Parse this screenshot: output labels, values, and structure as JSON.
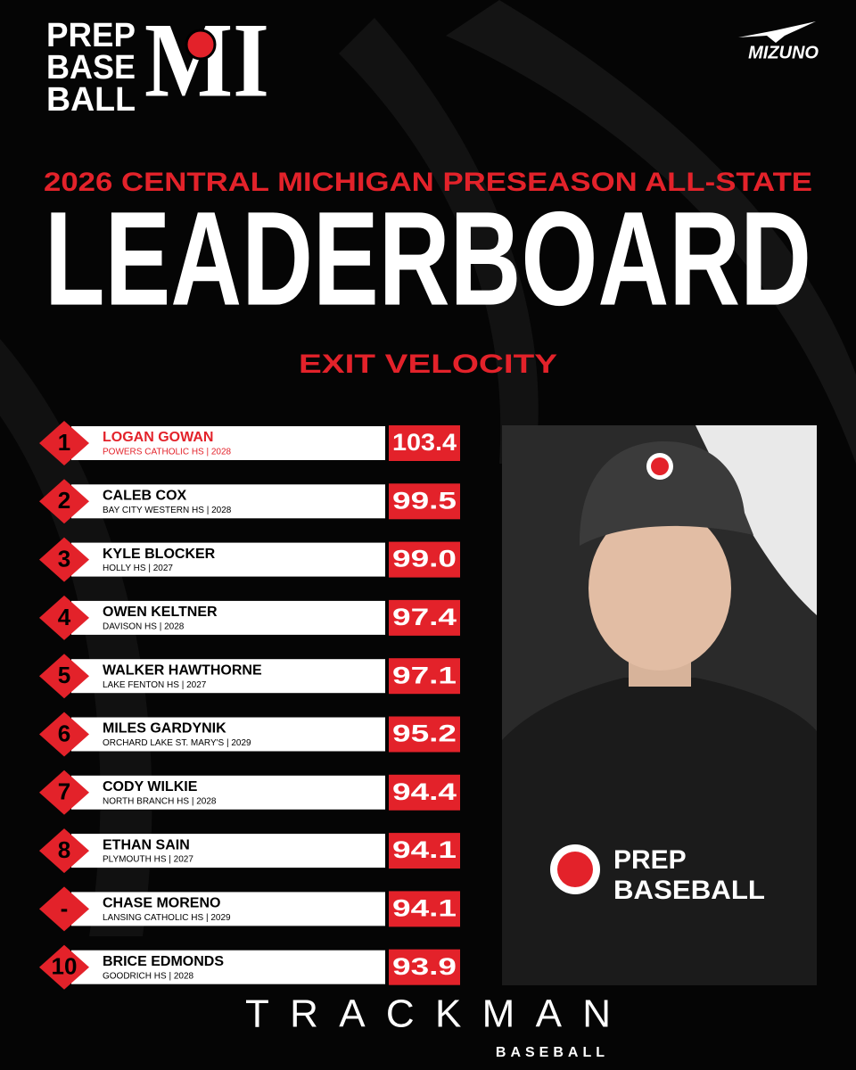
{
  "logo": {
    "lines": [
      "PREP",
      "BASE",
      "BALL"
    ],
    "state": "MI"
  },
  "sponsor": "MIZUNO",
  "header": {
    "subtitle": "2026 CENTRAL MICHIGAN PRESEASON ALL-STATE",
    "title": "LEADERBOARD",
    "category": "EXIT VELOCITY"
  },
  "rows": [
    {
      "rank": "1",
      "name": "LOGAN GOWAN",
      "school": "POWERS CATHOLIC HS | 2028",
      "value": "103.4"
    },
    {
      "rank": "2",
      "name": "CALEB COX",
      "school": "BAY CITY WESTERN HS | 2028",
      "value": "99.5"
    },
    {
      "rank": "3",
      "name": "KYLE BLOCKER",
      "school": "HOLLY HS | 2027",
      "value": "99.0"
    },
    {
      "rank": "4",
      "name": "OWEN KELTNER",
      "school": "DAVISON HS | 2028",
      "value": "97.4"
    },
    {
      "rank": "5",
      "name": "WALKER HAWTHORNE",
      "school": "LAKE FENTON HS | 2027",
      "value": "97.1"
    },
    {
      "rank": "6",
      "name": "MILES GARDYNIK",
      "school": "ORCHARD LAKE ST. MARY'S | 2029",
      "value": "95.2"
    },
    {
      "rank": "7",
      "name": "CODY WILKIE",
      "school": "NORTH BRANCH HS | 2028",
      "value": "94.4"
    },
    {
      "rank": "8",
      "name": "ETHAN SAIN",
      "school": "PLYMOUTH HS | 2027",
      "value": "94.1"
    },
    {
      "rank": "-",
      "name": "CHASE MORENO",
      "school": "LANSING CATHOLIC HS | 2029",
      "value": "94.1"
    },
    {
      "rank": "10",
      "name": "BRICE EDMONDS",
      "school": "GOODRICH HS | 2028",
      "value": "93.9"
    }
  ],
  "photo": {
    "shirt_lines": [
      "PREP",
      "BASEBALL"
    ]
  },
  "footer": {
    "brand": "TRACKMAN",
    "sub": "BASEBALL"
  }
}
